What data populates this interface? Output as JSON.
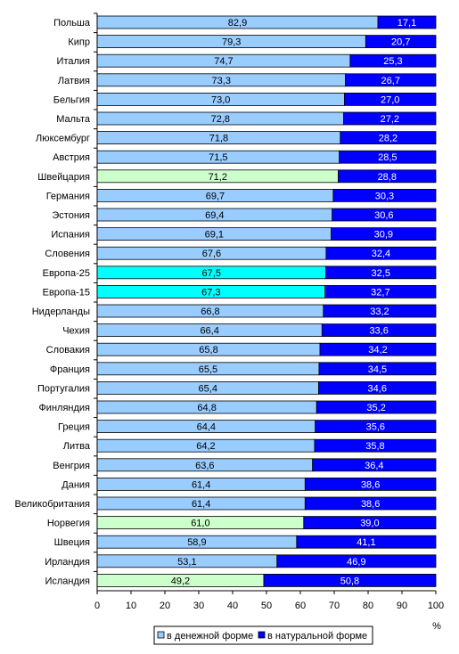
{
  "chart_data": {
    "type": "bar",
    "stacked": true,
    "orientation": "horizontal",
    "categories": [
      "Польша",
      "Кипр",
      "Италия",
      "Латвия",
      "Бельгия",
      "Мальта",
      "Люксембург",
      "Австрия",
      "Швейцария",
      "Германия",
      "Эстония",
      "Испания",
      "Словения",
      "Европа-25",
      "Европа-15",
      "Нидерланды",
      "Чехия",
      "Словакия",
      "Франция",
      "Португалия",
      "Финляндия",
      "Греция",
      "Литва",
      "Венгрия",
      "Дания",
      "Великобритания",
      "Норвегия",
      "Швеция",
      "Ирландия",
      "Исландия"
    ],
    "series": [
      {
        "name": "в денежной форме",
        "values": [
          82.9,
          79.3,
          74.7,
          73.3,
          73.0,
          72.8,
          71.8,
          71.5,
          71.2,
          69.7,
          69.4,
          69.1,
          67.6,
          67.5,
          67.3,
          66.8,
          66.4,
          65.8,
          65.5,
          65.4,
          64.8,
          64.4,
          64.2,
          63.6,
          61.4,
          61.4,
          61.0,
          58.9,
          53.1,
          49.2
        ]
      },
      {
        "name": "в натуральной форме",
        "values": [
          17.1,
          20.7,
          25.3,
          26.7,
          27.0,
          27.2,
          28.2,
          28.5,
          28.8,
          30.3,
          30.6,
          30.9,
          32.4,
          32.5,
          32.7,
          33.2,
          33.6,
          34.2,
          34.5,
          34.6,
          35.2,
          35.6,
          35.8,
          36.4,
          38.6,
          38.6,
          39.0,
          41.1,
          46.9,
          50.8
        ]
      }
    ],
    "value_labels": {
      "s0": [
        "82,9",
        "79,3",
        "74,7",
        "73,3",
        "73,0",
        "72,8",
        "71,8",
        "71,5",
        "71,2",
        "69,7",
        "69,4",
        "69,1",
        "67,6",
        "67,5",
        "67,3",
        "66,8",
        "66,4",
        "65,8",
        "65,5",
        "65,4",
        "64,8",
        "64,4",
        "64,2",
        "63,6",
        "61,4",
        "61,4",
        "61,0",
        "58,9",
        "53,1",
        "49,2"
      ],
      "s1": [
        "17,1",
        "20,7",
        "25,3",
        "26,7",
        "27,0",
        "27,2",
        "28,2",
        "28,5",
        "28,8",
        "30,3",
        "30,6",
        "30,9",
        "32,4",
        "32,5",
        "32,7",
        "33,2",
        "33,6",
        "34,2",
        "34,5",
        "34,6",
        "35,2",
        "35,6",
        "35,8",
        "36,4",
        "38,6",
        "38,6",
        "39,0",
        "41,1",
        "46,9",
        "50,8"
      ]
    },
    "highlights": {
      "Швейцария": "#ccffcc",
      "Норвегия": "#ccffcc",
      "Исландия": "#ccffcc",
      "Европа-25": "#00ffff",
      "Европа-15": "#00ffff"
    },
    "colors": {
      "money": "#99ccff",
      "natural": "#0000ff",
      "border": "#000000"
    },
    "xlim": [
      0,
      100
    ],
    "xticks": [
      0,
      10,
      20,
      30,
      40,
      50,
      60,
      70,
      80,
      90,
      100
    ],
    "x_unit": "%",
    "grid": false,
    "legend_position": "bottom-right"
  }
}
